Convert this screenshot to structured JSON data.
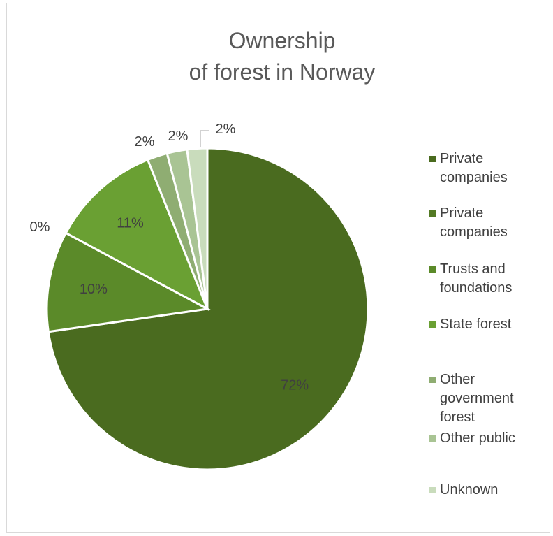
{
  "chart_data": {
    "type": "pie",
    "title_lines": [
      "Ownership",
      "of forest in Norway"
    ],
    "slices": [
      {
        "label": "Private companies",
        "legend": "Private\ncompanies",
        "value": 72,
        "data_label": "72%",
        "color": "#4a6b1f"
      },
      {
        "label": "Private companies",
        "legend": "Private\ncompanies",
        "value": 0,
        "data_label": "0%",
        "color": "#537a24"
      },
      {
        "label": "Trusts and foundations",
        "legend": "Trusts and\nfoundations",
        "value": 10,
        "data_label": "10%",
        "color": "#5b8a29"
      },
      {
        "label": "State forest",
        "legend": "State forest",
        "value": 11,
        "data_label": "11%",
        "color": "#6aa033"
      },
      {
        "label": "Other government forest",
        "legend": "Other\ngovernment\nforest",
        "value": 2,
        "data_label": "2%",
        "color": "#8fad72"
      },
      {
        "label": "Other public",
        "legend": "Other public",
        "value": 2,
        "data_label": "2%",
        "color": "#a9c494"
      },
      {
        "label": "Unknown",
        "legend": "Unknown",
        "value": 2,
        "data_label": "2%",
        "color": "#c9dcbc"
      }
    ],
    "legend_position": "right"
  }
}
